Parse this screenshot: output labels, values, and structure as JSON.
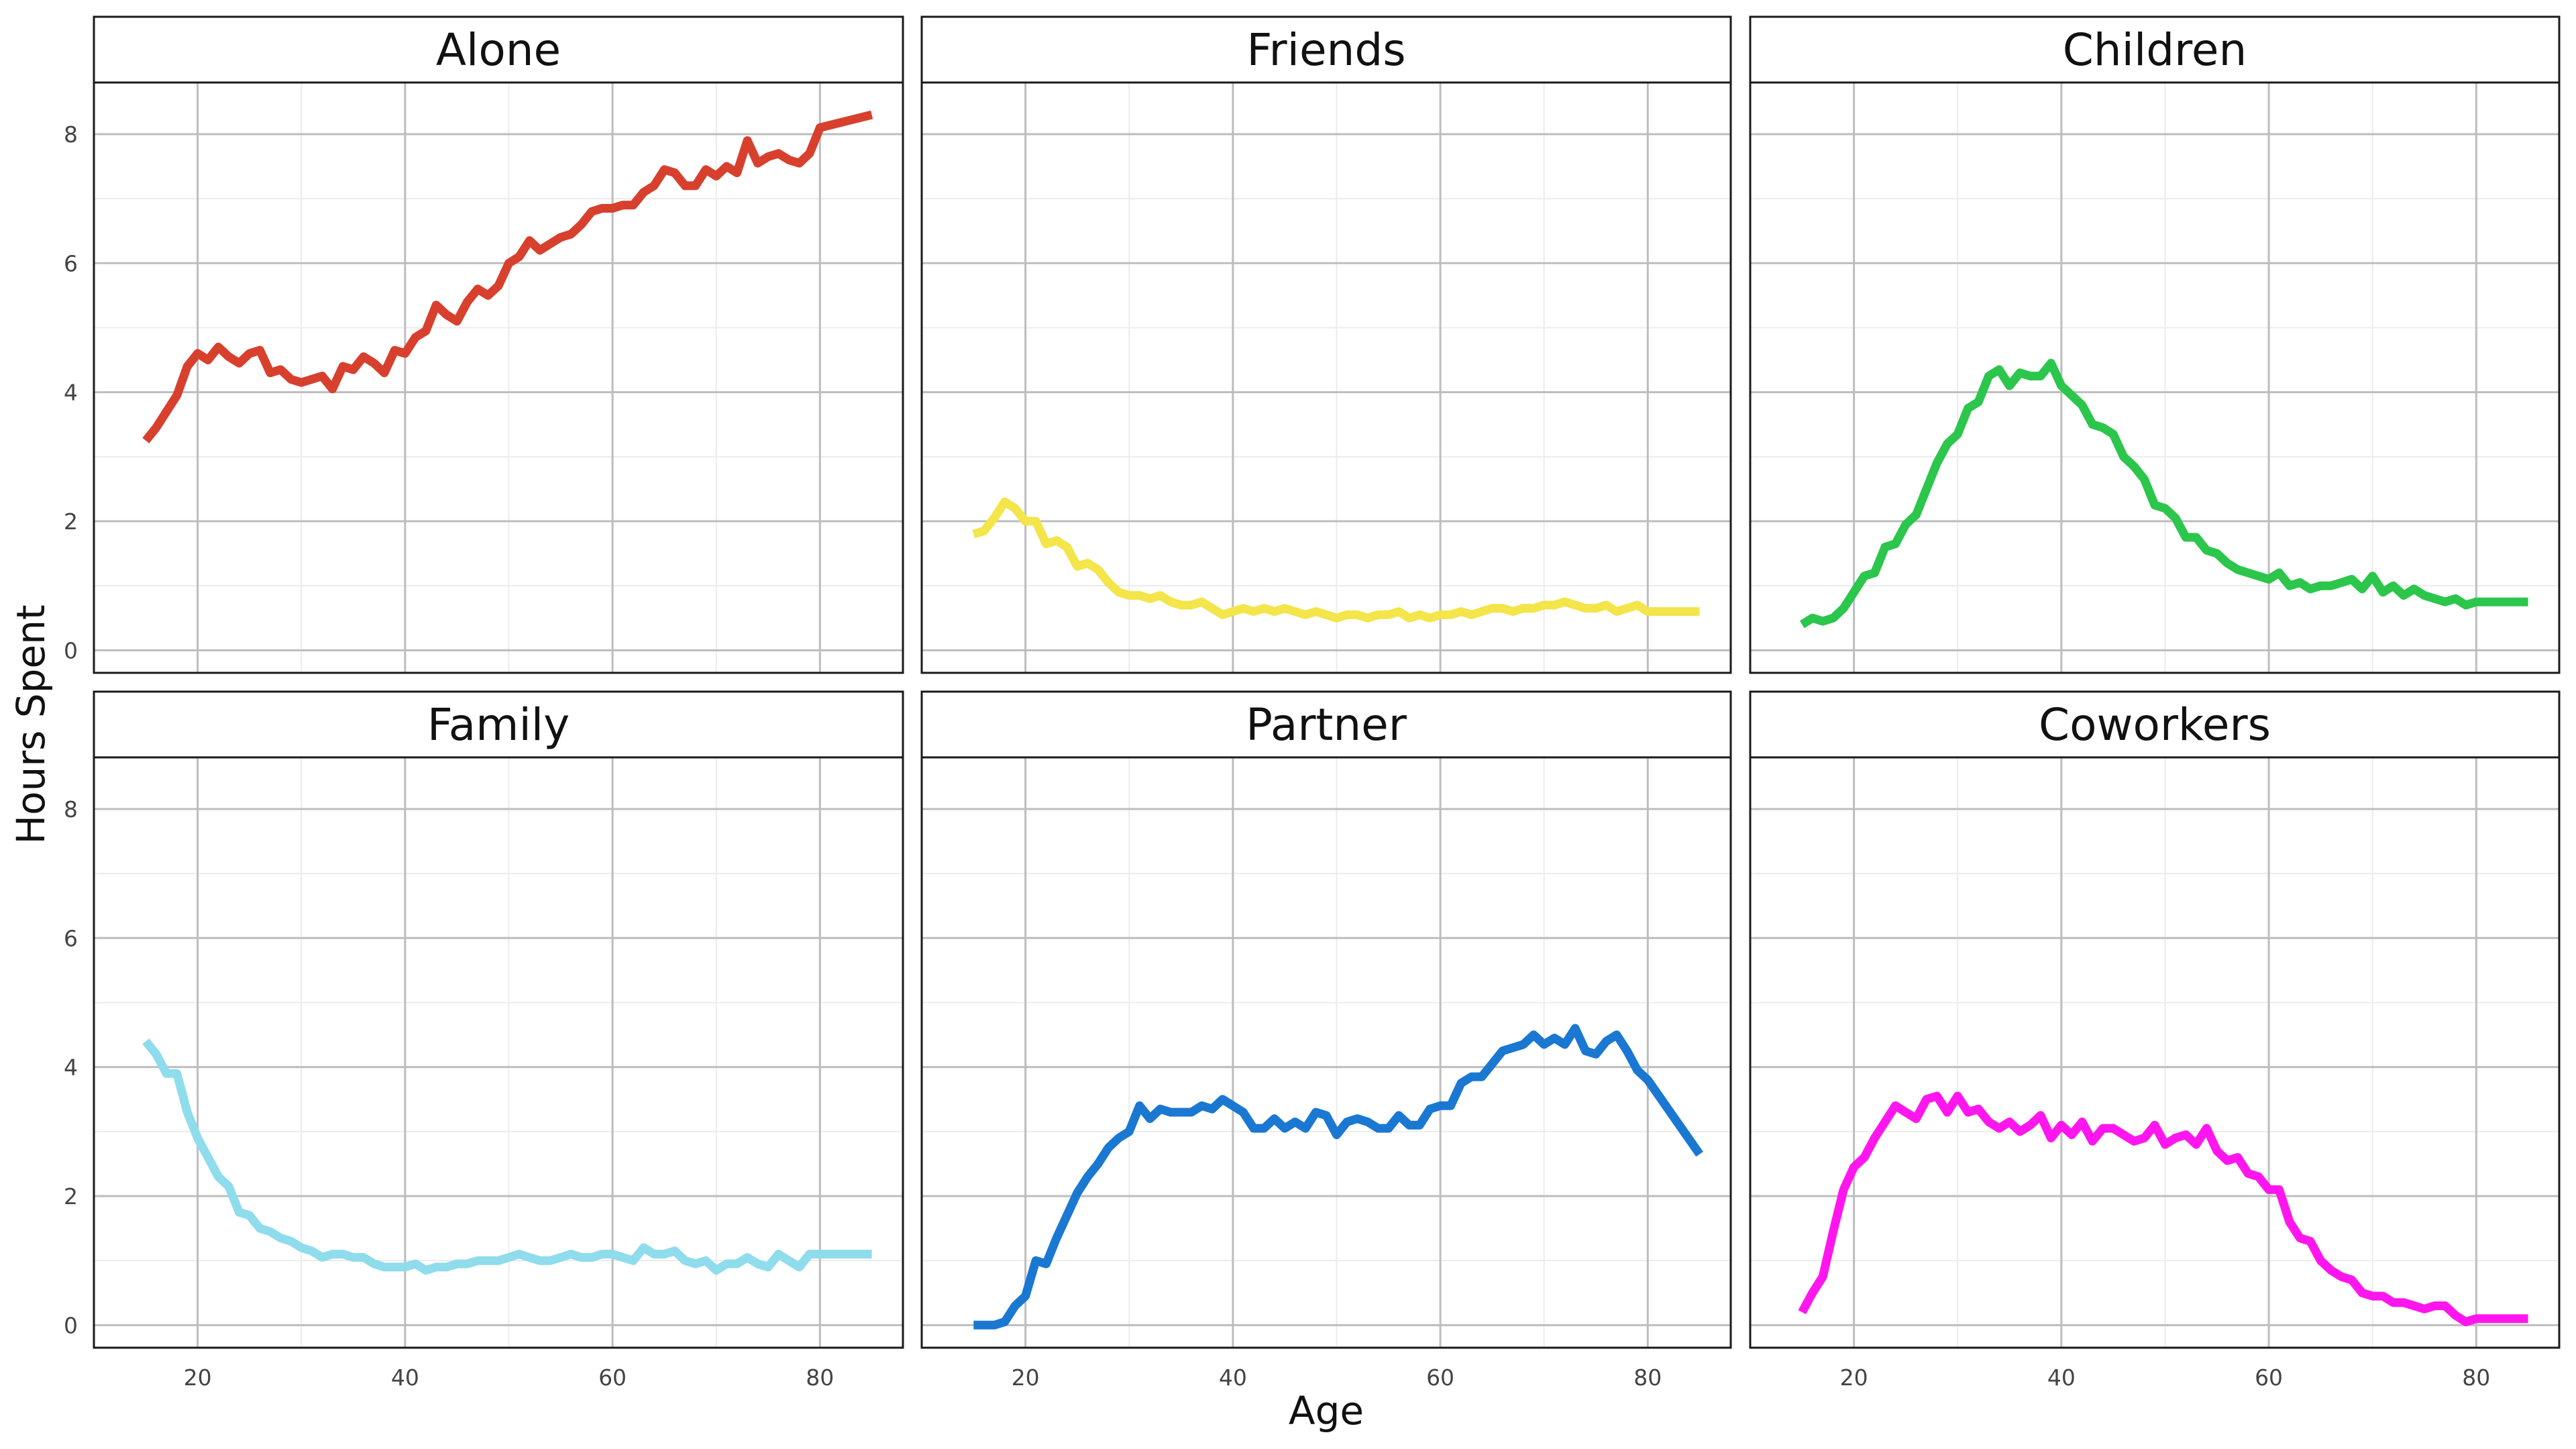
{
  "chart_data": {
    "type": "line",
    "layout": "facet-grid 2x3",
    "xlabel": "Age",
    "ylabel": "Hours Spent",
    "xlim": [
      10,
      88
    ],
    "ylim": [
      -0.35,
      8.8
    ],
    "xticks": [
      20,
      40,
      60,
      80
    ],
    "yticks": [
      0,
      2,
      4,
      6,
      8
    ],
    "grid": true,
    "legend": "none",
    "panels": [
      {
        "label": "Alone",
        "color": "#d8402e",
        "x": [
          15,
          16,
          17,
          18,
          19,
          20,
          21,
          22,
          23,
          24,
          25,
          26,
          27,
          28,
          29,
          30,
          31,
          32,
          33,
          34,
          35,
          36,
          37,
          38,
          39,
          40,
          41,
          42,
          43,
          44,
          45,
          46,
          47,
          48,
          49,
          50,
          51,
          52,
          53,
          54,
          55,
          56,
          57,
          58,
          59,
          60,
          61,
          62,
          63,
          64,
          65,
          66,
          67,
          68,
          69,
          70,
          71,
          72,
          73,
          74,
          75,
          76,
          77,
          78,
          79,
          80,
          85
        ],
        "y": [
          3.25,
          3.45,
          3.7,
          3.95,
          4.4,
          4.6,
          4.5,
          4.7,
          4.55,
          4.45,
          4.6,
          4.65,
          4.3,
          4.35,
          4.2,
          4.15,
          4.2,
          4.25,
          4.05,
          4.4,
          4.35,
          4.55,
          4.45,
          4.3,
          4.65,
          4.6,
          4.85,
          4.95,
          5.35,
          5.2,
          5.1,
          5.4,
          5.6,
          5.5,
          5.65,
          6.0,
          6.1,
          6.35,
          6.2,
          6.3,
          6.4,
          6.45,
          6.6,
          6.8,
          6.85,
          6.85,
          6.9,
          6.9,
          7.1,
          7.2,
          7.45,
          7.4,
          7.2,
          7.2,
          7.45,
          7.35,
          7.5,
          7.4,
          7.9,
          7.55,
          7.65,
          7.7,
          7.6,
          7.55,
          7.7,
          8.1,
          8.3
        ]
      },
      {
        "label": "Friends",
        "color": "#f3e54a",
        "x": [
          15,
          16,
          17,
          18,
          19,
          20,
          21,
          22,
          23,
          24,
          25,
          26,
          27,
          28,
          29,
          30,
          31,
          32,
          33,
          34,
          35,
          36,
          37,
          38,
          39,
          40,
          41,
          42,
          43,
          44,
          45,
          46,
          47,
          48,
          49,
          50,
          51,
          52,
          53,
          54,
          55,
          56,
          57,
          58,
          59,
          60,
          61,
          62,
          63,
          64,
          65,
          66,
          67,
          68,
          69,
          70,
          71,
          72,
          73,
          74,
          75,
          76,
          77,
          78,
          79,
          80,
          85
        ],
        "y": [
          1.8,
          1.85,
          2.05,
          2.3,
          2.2,
          2.0,
          2.0,
          1.65,
          1.7,
          1.6,
          1.3,
          1.35,
          1.25,
          1.05,
          0.9,
          0.85,
          0.85,
          0.8,
          0.85,
          0.75,
          0.7,
          0.7,
          0.75,
          0.65,
          0.55,
          0.6,
          0.65,
          0.6,
          0.65,
          0.6,
          0.65,
          0.6,
          0.55,
          0.6,
          0.55,
          0.5,
          0.55,
          0.55,
          0.5,
          0.55,
          0.55,
          0.6,
          0.5,
          0.55,
          0.5,
          0.55,
          0.55,
          0.6,
          0.55,
          0.6,
          0.65,
          0.65,
          0.6,
          0.65,
          0.65,
          0.7,
          0.7,
          0.75,
          0.7,
          0.65,
          0.65,
          0.7,
          0.6,
          0.65,
          0.7,
          0.6,
          0.6
        ]
      },
      {
        "label": "Children",
        "color": "#2bc64b",
        "x": [
          15,
          16,
          17,
          18,
          19,
          20,
          21,
          22,
          23,
          24,
          25,
          26,
          27,
          28,
          29,
          30,
          31,
          32,
          33,
          34,
          35,
          36,
          37,
          38,
          39,
          40,
          41,
          42,
          43,
          44,
          45,
          46,
          47,
          48,
          49,
          50,
          51,
          52,
          53,
          54,
          55,
          56,
          57,
          58,
          59,
          60,
          61,
          62,
          63,
          64,
          65,
          66,
          67,
          68,
          69,
          70,
          71,
          72,
          73,
          74,
          75,
          76,
          77,
          78,
          79,
          80,
          85
        ],
        "y": [
          0.4,
          0.5,
          0.45,
          0.5,
          0.65,
          0.9,
          1.15,
          1.2,
          1.6,
          1.65,
          1.95,
          2.1,
          2.5,
          2.9,
          3.2,
          3.35,
          3.75,
          3.85,
          4.25,
          4.35,
          4.1,
          4.3,
          4.25,
          4.25,
          4.45,
          4.1,
          3.95,
          3.8,
          3.5,
          3.45,
          3.35,
          3.0,
          2.85,
          2.65,
          2.25,
          2.2,
          2.05,
          1.75,
          1.75,
          1.55,
          1.5,
          1.35,
          1.25,
          1.2,
          1.15,
          1.1,
          1.2,
          1.0,
          1.05,
          0.95,
          1.0,
          1.0,
          1.05,
          1.1,
          0.95,
          1.15,
          0.9,
          1.0,
          0.85,
          0.95,
          0.85,
          0.8,
          0.75,
          0.8,
          0.7,
          0.75,
          0.75
        ]
      },
      {
        "label": "Family",
        "color": "#8fdcec",
        "x": [
          15,
          16,
          17,
          18,
          19,
          20,
          21,
          22,
          23,
          24,
          25,
          26,
          27,
          28,
          29,
          30,
          31,
          32,
          33,
          34,
          35,
          36,
          37,
          38,
          39,
          40,
          41,
          42,
          43,
          44,
          45,
          46,
          47,
          48,
          49,
          50,
          51,
          52,
          53,
          54,
          55,
          56,
          57,
          58,
          59,
          60,
          61,
          62,
          63,
          64,
          65,
          66,
          67,
          68,
          69,
          70,
          71,
          72,
          73,
          74,
          75,
          76,
          77,
          78,
          79,
          80,
          85
        ],
        "y": [
          4.4,
          4.2,
          3.9,
          3.9,
          3.3,
          2.9,
          2.6,
          2.3,
          2.15,
          1.75,
          1.7,
          1.5,
          1.45,
          1.35,
          1.3,
          1.2,
          1.15,
          1.05,
          1.1,
          1.1,
          1.05,
          1.05,
          0.95,
          0.9,
          0.9,
          0.9,
          0.95,
          0.85,
          0.9,
          0.9,
          0.95,
          0.95,
          1.0,
          1.0,
          1.0,
          1.05,
          1.1,
          1.05,
          1.0,
          1.0,
          1.05,
          1.1,
          1.05,
          1.05,
          1.1,
          1.1,
          1.05,
          1.0,
          1.2,
          1.1,
          1.1,
          1.15,
          1.0,
          0.95,
          1.0,
          0.85,
          0.95,
          0.95,
          1.05,
          0.95,
          0.9,
          1.1,
          1.0,
          0.9,
          1.1,
          1.1,
          1.1
        ]
      },
      {
        "label": "Partner",
        "color": "#1a78d2",
        "x": [
          15,
          16,
          17,
          18,
          19,
          20,
          21,
          22,
          23,
          24,
          25,
          26,
          27,
          28,
          29,
          30,
          31,
          32,
          33,
          34,
          35,
          36,
          37,
          38,
          39,
          40,
          41,
          42,
          43,
          44,
          45,
          46,
          47,
          48,
          49,
          50,
          51,
          52,
          53,
          54,
          55,
          56,
          57,
          58,
          59,
          60,
          61,
          62,
          63,
          64,
          65,
          66,
          67,
          68,
          69,
          70,
          71,
          72,
          73,
          74,
          75,
          76,
          77,
          78,
          79,
          80,
          85
        ],
        "y": [
          0.0,
          0.0,
          0.0,
          0.05,
          0.3,
          0.45,
          1.0,
          0.95,
          1.35,
          1.7,
          2.05,
          2.3,
          2.5,
          2.75,
          2.9,
          3.0,
          3.4,
          3.2,
          3.35,
          3.3,
          3.3,
          3.3,
          3.4,
          3.35,
          3.5,
          3.4,
          3.3,
          3.05,
          3.05,
          3.2,
          3.05,
          3.15,
          3.05,
          3.3,
          3.25,
          2.95,
          3.15,
          3.2,
          3.15,
          3.05,
          3.05,
          3.25,
          3.1,
          3.1,
          3.35,
          3.4,
          3.4,
          3.75,
          3.85,
          3.85,
          4.05,
          4.25,
          4.3,
          4.35,
          4.5,
          4.35,
          4.45,
          4.35,
          4.6,
          4.25,
          4.2,
          4.4,
          4.5,
          4.25,
          3.95,
          3.8,
          2.65
        ]
      },
      {
        "label": "Coworkers",
        "color": "#ff16ee",
        "x": [
          15,
          16,
          17,
          18,
          19,
          20,
          21,
          22,
          23,
          24,
          25,
          26,
          27,
          28,
          29,
          30,
          31,
          32,
          33,
          34,
          35,
          36,
          37,
          38,
          39,
          40,
          41,
          42,
          43,
          44,
          45,
          46,
          47,
          48,
          49,
          50,
          51,
          52,
          53,
          54,
          55,
          56,
          57,
          58,
          59,
          60,
          61,
          62,
          63,
          64,
          65,
          66,
          67,
          68,
          69,
          70,
          71,
          72,
          73,
          74,
          75,
          76,
          77,
          78,
          79,
          80,
          85
        ],
        "y": [
          0.2,
          0.5,
          0.75,
          1.45,
          2.1,
          2.45,
          2.6,
          2.9,
          3.15,
          3.4,
          3.3,
          3.2,
          3.5,
          3.55,
          3.3,
          3.55,
          3.3,
          3.35,
          3.15,
          3.05,
          3.15,
          3.0,
          3.1,
          3.25,
          2.9,
          3.1,
          2.95,
          3.15,
          2.85,
          3.05,
          3.05,
          2.95,
          2.85,
          2.9,
          3.1,
          2.8,
          2.9,
          2.95,
          2.8,
          3.05,
          2.7,
          2.55,
          2.6,
          2.35,
          2.3,
          2.1,
          2.1,
          1.6,
          1.35,
          1.3,
          1.0,
          0.85,
          0.75,
          0.7,
          0.5,
          0.45,
          0.45,
          0.35,
          0.35,
          0.3,
          0.25,
          0.3,
          0.3,
          0.15,
          0.05,
          0.1,
          0.1
        ]
      }
    ]
  }
}
